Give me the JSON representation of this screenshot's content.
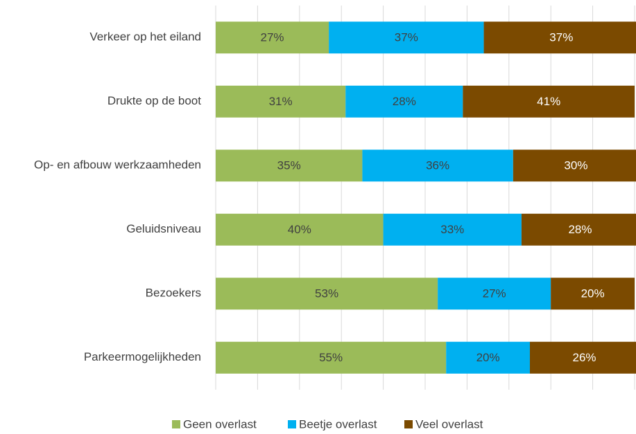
{
  "chart_data": {
    "type": "stacked-bar-horizontal",
    "categories": [
      "Verkeer op het eiland",
      "Drukte op de boot",
      "Op- en afbouw werkzaamheden",
      "Geluidsniveau",
      "Bezoekers",
      "Parkeermogelijkheden"
    ],
    "series": [
      {
        "name": "Geen overlast",
        "color": "#9bbb59",
        "values": [
          27,
          31,
          35,
          40,
          53,
          55
        ],
        "value_labels": [
          "27%",
          "31%",
          "35%",
          "40%",
          "53%",
          "55%"
        ]
      },
      {
        "name": "Beetje overlast",
        "color": "#00b0f0",
        "values": [
          37,
          28,
          36,
          33,
          27,
          20
        ],
        "value_labels": [
          "37%",
          "28%",
          "36%",
          "33%",
          "27%",
          "20%"
        ]
      },
      {
        "name": "Veel overlast",
        "color": "#7b4a00",
        "values": [
          37,
          41,
          30,
          28,
          20,
          26
        ],
        "value_labels": [
          "37%",
          "41%",
          "30%",
          "28%",
          "20%",
          "26%"
        ]
      }
    ],
    "xlim": [
      0,
      100
    ],
    "xticks": [
      0,
      10,
      20,
      30,
      40,
      50,
      60,
      70,
      80,
      90,
      100
    ],
    "grid": true,
    "legend": "bottom"
  }
}
